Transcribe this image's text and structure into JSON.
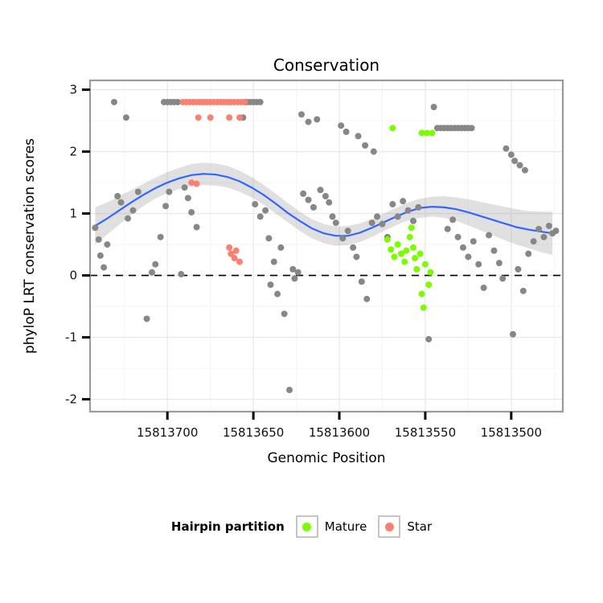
{
  "title": "Conservation",
  "legend": {
    "title": "Hairpin partition",
    "items": [
      {
        "label": "Mature",
        "color": "#7CFC00"
      },
      {
        "label": "Star",
        "color": "#FA8072"
      }
    ]
  },
  "chart_data": {
    "type": "scatter",
    "title": "Conservation",
    "xlabel": "Genomic Position",
    "ylabel": "phyloP LRT conservation scores",
    "x_ticks": [
      15813700,
      15813650,
      15813600,
      15813550,
      15813500
    ],
    "x_minor_ticks": [
      15813725,
      15813675,
      15813625,
      15813575,
      15813525,
      15813475
    ],
    "y_ticks": [
      -2,
      -1,
      0,
      1,
      2,
      3
    ],
    "y_minor_ticks": [
      -1.5,
      -0.5,
      0.5,
      1.5,
      2.5
    ],
    "x_domain": [
      15813745,
      15813470
    ],
    "y_domain": [
      -2.2,
      3.15
    ],
    "x_reversed": true,
    "reference_line_y": 0,
    "grid": true,
    "legend_position": "bottom",
    "colors": {
      "points": "#878787",
      "mature": "#7CFC00",
      "star": "#FA8072",
      "smooth_line": "#3366FF",
      "band": "#999999",
      "border": "#9b9b9b",
      "grid_major": "#e9e9e9",
      "grid_minor": "#f4f4f4",
      "panel": "#ffffff",
      "tick": "#000000",
      "reference_line": "#000000"
    },
    "series": [
      {
        "name": "unpartitioned",
        "color": "#878787",
        "points": [
          [
            15813742,
            0.77
          ],
          [
            15813740,
            0.58
          ],
          [
            15813739,
            0.32
          ],
          [
            15813737,
            0.13
          ],
          [
            15813735,
            0.5
          ],
          [
            15813731,
            2.8
          ],
          [
            15813724,
            2.55
          ],
          [
            15813729,
            1.28
          ],
          [
            15813727,
            1.18
          ],
          [
            15813723,
            0.92
          ],
          [
            15813720,
            1.05
          ],
          [
            15813717,
            1.35
          ],
          [
            15813712,
            -0.7
          ],
          [
            15813709,
            0.05
          ],
          [
            15813707,
            0.18
          ],
          [
            15813704,
            0.62
          ],
          [
            15813702,
            2.8
          ],
          [
            15813700,
            2.8
          ],
          [
            15813698,
            2.8
          ],
          [
            15813696,
            2.8
          ],
          [
            15813694,
            2.8
          ],
          [
            15813701,
            1.12
          ],
          [
            15813699,
            1.35
          ],
          [
            15813692,
            0.02
          ],
          [
            15813690,
            1.42
          ],
          [
            15813688,
            1.25
          ],
          [
            15813686,
            1.02
          ],
          [
            15813683,
            0.78
          ],
          [
            15813654,
            2.8
          ],
          [
            15813652,
            2.8
          ],
          [
            15813650,
            2.8
          ],
          [
            15813648,
            2.8
          ],
          [
            15813646,
            2.8
          ],
          [
            15813656,
            2.55
          ],
          [
            15813649,
            1.15
          ],
          [
            15813646,
            0.95
          ],
          [
            15813643,
            1.05
          ],
          [
            15813641,
            0.6
          ],
          [
            15813640,
            -0.15
          ],
          [
            15813638,
            0.22
          ],
          [
            15813636,
            -0.3
          ],
          [
            15813634,
            0.45
          ],
          [
            15813632,
            -0.62
          ],
          [
            15813629,
            -1.85
          ],
          [
            15813627,
            0.1
          ],
          [
            15813626,
            -0.05
          ],
          [
            15813624,
            0.05
          ],
          [
            15813622,
            2.6
          ],
          [
            15813618,
            2.48
          ],
          [
            15813613,
            2.52
          ],
          [
            15813621,
            1.32
          ],
          [
            15813618,
            1.22
          ],
          [
            15813615,
            1.1
          ],
          [
            15813611,
            1.38
          ],
          [
            15813608,
            1.28
          ],
          [
            15813606,
            1.18
          ],
          [
            15813604,
            0.95
          ],
          [
            15813602,
            0.85
          ],
          [
            15813599,
            2.42
          ],
          [
            15813596,
            2.32
          ],
          [
            15813598,
            0.6
          ],
          [
            15813595,
            0.72
          ],
          [
            15813592,
            0.45
          ],
          [
            15813590,
            0.3
          ],
          [
            15813587,
            -0.1
          ],
          [
            15813584,
            -0.38
          ],
          [
            15813581,
            0.85
          ],
          [
            15813578,
            0.95
          ],
          [
            15813589,
            2.25
          ],
          [
            15813585,
            2.1
          ],
          [
            15813580,
            2.0
          ],
          [
            15813575,
            0.83
          ],
          [
            15813572,
            0.62
          ],
          [
            15813569,
            1.15
          ],
          [
            15813566,
            0.95
          ],
          [
            15813563,
            1.2
          ],
          [
            15813560,
            1.05
          ],
          [
            15813557,
            0.88
          ],
          [
            15813554,
            1.1
          ],
          [
            15813548,
            -1.03
          ],
          [
            15813545,
            2.72
          ],
          [
            15813543,
            2.38
          ],
          [
            15813541,
            2.38
          ],
          [
            15813539,
            2.38
          ],
          [
            15813537,
            2.38
          ],
          [
            15813535,
            2.38
          ],
          [
            15813533,
            2.38
          ],
          [
            15813531,
            2.38
          ],
          [
            15813529,
            2.38
          ],
          [
            15813527,
            2.38
          ],
          [
            15813525,
            2.38
          ],
          [
            15813523,
            2.38
          ],
          [
            15813537,
            0.75
          ],
          [
            15813534,
            0.9
          ],
          [
            15813531,
            0.62
          ],
          [
            15813528,
            0.45
          ],
          [
            15813525,
            0.3
          ],
          [
            15813522,
            0.55
          ],
          [
            15813519,
            0.18
          ],
          [
            15813516,
            -0.2
          ],
          [
            15813513,
            0.65
          ],
          [
            15813510,
            0.4
          ],
          [
            15813507,
            0.2
          ],
          [
            15813505,
            -0.05
          ],
          [
            15813503,
            2.05
          ],
          [
            15813500,
            1.95
          ],
          [
            15813498,
            1.85
          ],
          [
            15813495,
            1.78
          ],
          [
            15813492,
            1.7
          ],
          [
            15813499,
            -0.95
          ],
          [
            15813496,
            0.1
          ],
          [
            15813493,
            -0.25
          ],
          [
            15813490,
            0.35
          ],
          [
            15813487,
            0.55
          ],
          [
            15813484,
            0.75
          ],
          [
            15813481,
            0.62
          ],
          [
            15813478,
            0.8
          ],
          [
            15813476,
            0.68
          ],
          [
            15813474,
            0.72
          ]
        ]
      },
      {
        "name": "Mature",
        "color": "#7CFC00",
        "points": [
          [
            15813569,
            2.38
          ],
          [
            15813552,
            2.3
          ],
          [
            15813549,
            2.3
          ],
          [
            15813546,
            2.3
          ],
          [
            15813572,
            0.58
          ],
          [
            15813570,
            0.42
          ],
          [
            15813568,
            0.3
          ],
          [
            15813566,
            0.5
          ],
          [
            15813564,
            0.35
          ],
          [
            15813562,
            0.22
          ],
          [
            15813561,
            0.4
          ],
          [
            15813559,
            0.62
          ],
          [
            15813558,
            0.77
          ],
          [
            15813557,
            0.45
          ],
          [
            15813556,
            0.28
          ],
          [
            15813555,
            0.1
          ],
          [
            15813553,
            0.35
          ],
          [
            15813552,
            -0.3
          ],
          [
            15813551,
            -0.52
          ],
          [
            15813550,
            0.18
          ],
          [
            15813548,
            -0.15
          ],
          [
            15813547,
            0.05
          ]
        ]
      },
      {
        "name": "Star",
        "color": "#FA8072",
        "points": [
          [
            15813691,
            2.8
          ],
          [
            15813689,
            2.8
          ],
          [
            15813687,
            2.8
          ],
          [
            15813685,
            2.8
          ],
          [
            15813683,
            2.8
          ],
          [
            15813681,
            2.8
          ],
          [
            15813679,
            2.8
          ],
          [
            15813677,
            2.8
          ],
          [
            15813675,
            2.8
          ],
          [
            15813673,
            2.8
          ],
          [
            15813671,
            2.8
          ],
          [
            15813669,
            2.8
          ],
          [
            15813667,
            2.8
          ],
          [
            15813665,
            2.8
          ],
          [
            15813663,
            2.8
          ],
          [
            15813661,
            2.8
          ],
          [
            15813659,
            2.8
          ],
          [
            15813657,
            2.8
          ],
          [
            15813655,
            2.8
          ],
          [
            15813682,
            2.55
          ],
          [
            15813675,
            2.55
          ],
          [
            15813664,
            2.55
          ],
          [
            15813658,
            2.55
          ],
          [
            15813686,
            1.5
          ],
          [
            15813683,
            1.48
          ],
          [
            15813664,
            0.45
          ],
          [
            15813663,
            0.35
          ],
          [
            15813661,
            0.28
          ],
          [
            15813660,
            0.4
          ],
          [
            15813658,
            0.22
          ]
        ]
      }
    ],
    "smooth": {
      "description": "loess fit with confidence band [position, fit, lower, upper]",
      "points": [
        [
          15813742,
          0.8,
          0.5,
          1.1
        ],
        [
          15813735,
          0.92,
          0.66,
          1.18
        ],
        [
          15813728,
          1.05,
          0.82,
          1.28
        ],
        [
          15813721,
          1.18,
          0.98,
          1.38
        ],
        [
          15813714,
          1.3,
          1.12,
          1.48
        ],
        [
          15813707,
          1.41,
          1.24,
          1.58
        ],
        [
          15813700,
          1.5,
          1.33,
          1.67
        ],
        [
          15813693,
          1.57,
          1.4,
          1.74
        ],
        [
          15813686,
          1.62,
          1.44,
          1.8
        ],
        [
          15813679,
          1.64,
          1.46,
          1.82
        ],
        [
          15813672,
          1.63,
          1.45,
          1.81
        ],
        [
          15813665,
          1.59,
          1.42,
          1.77
        ],
        [
          15813658,
          1.52,
          1.35,
          1.69
        ],
        [
          15813651,
          1.42,
          1.26,
          1.59
        ],
        [
          15813644,
          1.3,
          1.14,
          1.46
        ],
        [
          15813637,
          1.16,
          1.0,
          1.32
        ],
        [
          15813630,
          1.01,
          0.86,
          1.17
        ],
        [
          15813623,
          0.88,
          0.72,
          1.03
        ],
        [
          15813616,
          0.76,
          0.6,
          0.91
        ],
        [
          15813609,
          0.68,
          0.52,
          0.83
        ],
        [
          15813602,
          0.64,
          0.48,
          0.79
        ],
        [
          15813595,
          0.64,
          0.49,
          0.8
        ],
        [
          15813588,
          0.69,
          0.54,
          0.84
        ],
        [
          15813581,
          0.77,
          0.62,
          0.91
        ],
        [
          15813574,
          0.86,
          0.72,
          1.0
        ],
        [
          15813567,
          0.95,
          0.81,
          1.09
        ],
        [
          15813560,
          1.03,
          0.89,
          1.18
        ],
        [
          15813553,
          1.09,
          0.93,
          1.24
        ],
        [
          15813546,
          1.11,
          0.95,
          1.27
        ],
        [
          15813539,
          1.1,
          0.93,
          1.28
        ],
        [
          15813532,
          1.07,
          0.88,
          1.26
        ],
        [
          15813525,
          1.02,
          0.81,
          1.23
        ],
        [
          15813518,
          0.96,
          0.73,
          1.19
        ],
        [
          15813511,
          0.9,
          0.65,
          1.15
        ],
        [
          15813504,
          0.84,
          0.57,
          1.11
        ],
        [
          15813497,
          0.78,
          0.5,
          1.07
        ],
        [
          15813490,
          0.74,
          0.44,
          1.04
        ],
        [
          15813483,
          0.71,
          0.38,
          1.03
        ],
        [
          15813476,
          0.68,
          0.33,
          1.03
        ]
      ]
    }
  }
}
